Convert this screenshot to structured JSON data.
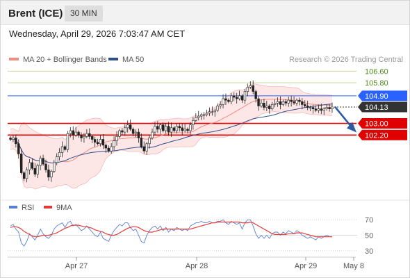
{
  "header": {
    "symbol": "Brent (ICE)",
    "interval": "30 MIN"
  },
  "datetime": "Wednesday, April 29, 2026 7:03:47 AM CET",
  "legend": {
    "ma20": {
      "label": "MA 20 + Bollinger Bands",
      "color": "#f28b82"
    },
    "ma50": {
      "label": "MA 50",
      "color": "#2d4f8c"
    }
  },
  "credit": "Research © 2026 Trading Central",
  "rsi_legend": {
    "rsi": {
      "label": "RSI",
      "color": "#5a7fd6"
    },
    "ma9": {
      "label": "9MA",
      "color": "#e53935"
    }
  },
  "colors": {
    "resistance_green": "#b5d68a",
    "pivot_blue": "#2962ff",
    "support_red": "#e00000",
    "last_price_box": "#333333",
    "bb_fill": "#fde3e3",
    "arrow": "#2d5aa3"
  },
  "chart_data": [
    {
      "type": "candlestick",
      "x_ticks": [
        "Apr 27",
        "Apr 28",
        "Apr 29",
        "May 8"
      ],
      "price_levels": [
        {
          "value": 106.6,
          "label": "106.60",
          "role": "resistance"
        },
        {
          "value": 105.8,
          "label": "105.80",
          "role": "resistance"
        },
        {
          "value": 104.9,
          "label": "104.90",
          "role": "pivot"
        },
        {
          "value": 104.13,
          "label": "104.13",
          "role": "last"
        },
        {
          "value": 103.0,
          "label": "103.00",
          "role": "support"
        },
        {
          "value": 102.2,
          "label": "102.20",
          "role": "support"
        }
      ],
      "ylim": [
        98.0,
        107.0
      ],
      "closes": [
        101.9,
        102.0,
        101.6,
        100.9,
        99.6,
        99.2,
        99.8,
        100.3,
        99.9,
        99.5,
        100.1,
        100.6,
        100.2,
        99.8,
        99.3,
        99.7,
        100.3,
        100.7,
        101.0,
        101.4,
        101.2,
        102.3,
        102.5,
        102.2,
        102.4,
        102.2,
        102.0,
        102.1,
        102.3,
        102.1,
        101.9,
        101.7,
        101.6,
        101.9,
        101.5,
        101.3,
        101.1,
        101.4,
        101.8,
        102.1,
        102.5,
        102.4,
        102.7,
        102.9,
        102.6,
        102.3,
        102.4,
        102.0,
        101.4,
        101.1,
        101.6,
        102.0,
        102.4,
        102.8,
        102.6,
        102.9,
        102.5,
        102.8,
        102.4,
        102.7,
        102.5,
        102.8,
        102.7,
        102.5,
        102.6,
        102.5,
        102.9,
        103.2,
        103.4,
        103.5,
        103.6,
        103.6,
        103.7,
        103.8,
        103.8,
        103.9,
        104.2,
        104.3,
        104.7,
        104.6,
        104.5,
        104.9,
        104.8,
        104.7,
        104.9,
        104.6,
        105.2,
        105.5,
        105.6,
        105.2,
        104.7,
        104.2,
        104.4,
        104.1,
        104.2,
        104.0,
        104.3,
        104.4,
        104.5,
        104.3,
        104.5,
        104.4,
        104.6,
        104.5,
        104.4,
        104.6,
        104.5,
        104.3,
        104.2,
        104.1,
        104.1,
        104.0,
        103.9,
        104.0,
        103.9,
        104.0,
        104.1,
        104.0,
        104.13
      ]
    },
    {
      "type": "line",
      "title": "RSI",
      "ylim": [
        20,
        80
      ],
      "y_ticks": [
        70,
        50,
        30
      ],
      "series": [
        {
          "name": "RSI",
          "values": [
            62,
            64,
            58,
            54,
            40,
            36,
            42,
            52,
            48,
            44,
            50,
            58,
            52,
            48,
            46,
            50,
            58,
            62,
            64,
            66,
            60,
            66,
            68,
            62,
            64,
            60,
            56,
            58,
            62,
            58,
            54,
            50,
            48,
            54,
            46,
            44,
            42,
            50,
            56,
            60,
            64,
            62,
            66,
            66,
            60,
            56,
            58,
            50,
            42,
            40,
            50,
            56,
            60,
            62,
            58,
            62,
            56,
            60,
            54,
            58,
            56,
            60,
            58,
            56,
            58,
            56,
            62,
            64,
            66,
            66,
            68,
            66,
            66,
            68,
            66,
            66,
            68,
            68,
            70,
            66,
            64,
            68,
            66,
            64,
            66,
            58,
            66,
            70,
            70,
            62,
            52,
            46,
            50,
            46,
            50,
            46,
            52,
            54,
            54,
            50,
            54,
            52,
            56,
            54,
            52,
            56,
            54,
            50,
            48,
            46,
            48,
            46,
            44,
            48,
            46,
            48,
            50,
            48,
            48
          ]
        },
        {
          "name": "9MA",
          "values": [
            60,
            61,
            61,
            60,
            58,
            55,
            53,
            51,
            49,
            48,
            48,
            49,
            50,
            50,
            50,
            51,
            52,
            53,
            55,
            57,
            59,
            60,
            62,
            63,
            63,
            63,
            62,
            61,
            61,
            60,
            59,
            57,
            56,
            55,
            54,
            52,
            51,
            50,
            50,
            51,
            53,
            55,
            57,
            59,
            60,
            61,
            61,
            60,
            58,
            56,
            55,
            54,
            54,
            55,
            56,
            57,
            58,
            58,
            58,
            58,
            58,
            58,
            58,
            58,
            58,
            58,
            58,
            59,
            60,
            61,
            62,
            63,
            64,
            65,
            66,
            66,
            67,
            67,
            67,
            67,
            67,
            67,
            67,
            67,
            67,
            66,
            66,
            66,
            67,
            66,
            64,
            62,
            60,
            58,
            56,
            54,
            52,
            51,
            51,
            51,
            51,
            51,
            52,
            52,
            52,
            53,
            53,
            53,
            52,
            51,
            50,
            49,
            48,
            48,
            48,
            48,
            48,
            48,
            48
          ]
        }
      ]
    }
  ]
}
